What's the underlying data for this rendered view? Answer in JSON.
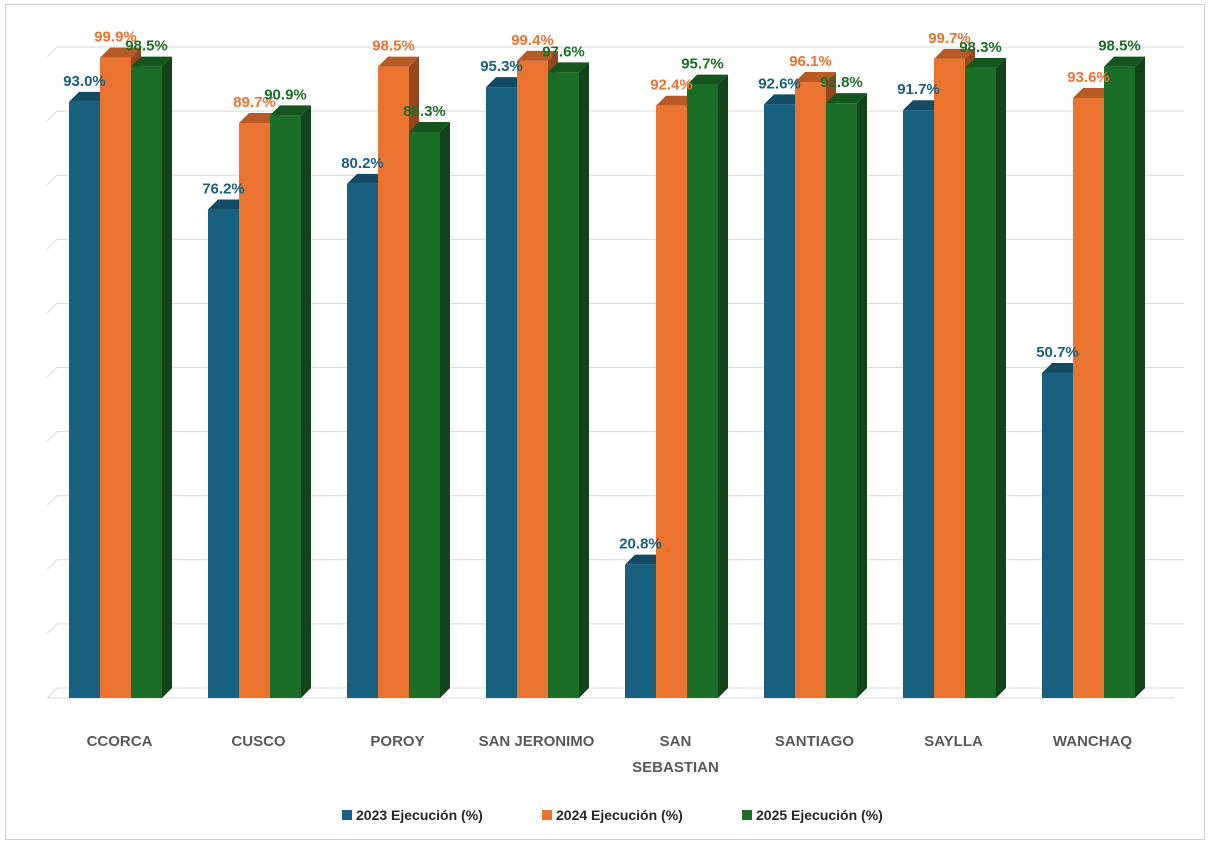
{
  "chart_data": {
    "type": "bar",
    "style": "3d-clustered-column",
    "title": "",
    "xlabel": "",
    "ylabel": "",
    "ylim": [
      0,
      100
    ],
    "grid": true,
    "legend_position": "bottom",
    "categories": [
      "CCORCA",
      "CUSCO",
      "POROY",
      "SAN JERONIMO",
      "SAN SEBASTIAN",
      "SANTIAGO",
      "SAYLLA",
      "WANCHAQ"
    ],
    "category_lines": [
      [
        "CCORCA"
      ],
      [
        "CUSCO"
      ],
      [
        "POROY"
      ],
      [
        "SAN JERONIMO"
      ],
      [
        "SAN",
        "SEBASTIAN"
      ],
      [
        "SANTIAGO"
      ],
      [
        "SAYLLA"
      ],
      [
        "WANCHAQ"
      ]
    ],
    "series": [
      {
        "name": "2023 Ejecución (%)",
        "color": "#17607F",
        "values": [
          93.0,
          76.2,
          80.2,
          95.3,
          20.8,
          92.6,
          91.7,
          50.7
        ],
        "labels": [
          "93.0%",
          "76.2%",
          "80.2%",
          "95.3%",
          "20.8%",
          "92.6%",
          "91.7%",
          "50.7%"
        ]
      },
      {
        "name": "2024 Ejecución (%)",
        "color": "#EB7330",
        "values": [
          99.9,
          89.7,
          98.5,
          99.4,
          92.4,
          96.1,
          99.7,
          93.6
        ],
        "labels": [
          "99.9%",
          "89.7%",
          "98.5%",
          "99.4%",
          "92.4%",
          "96.1%",
          "99.7%",
          "93.6%"
        ]
      },
      {
        "name": "2025 Ejecución (%)",
        "color": "#1B6E27",
        "values": [
          98.5,
          90.9,
          88.3,
          97.6,
          95.7,
          92.8,
          98.3,
          98.5
        ],
        "labels": [
          "98.5%",
          "90.9%",
          "88.3%",
          "97.6%",
          "95.7%",
          "92.8%",
          "98.3%",
          "98.5%"
        ]
      }
    ]
  }
}
